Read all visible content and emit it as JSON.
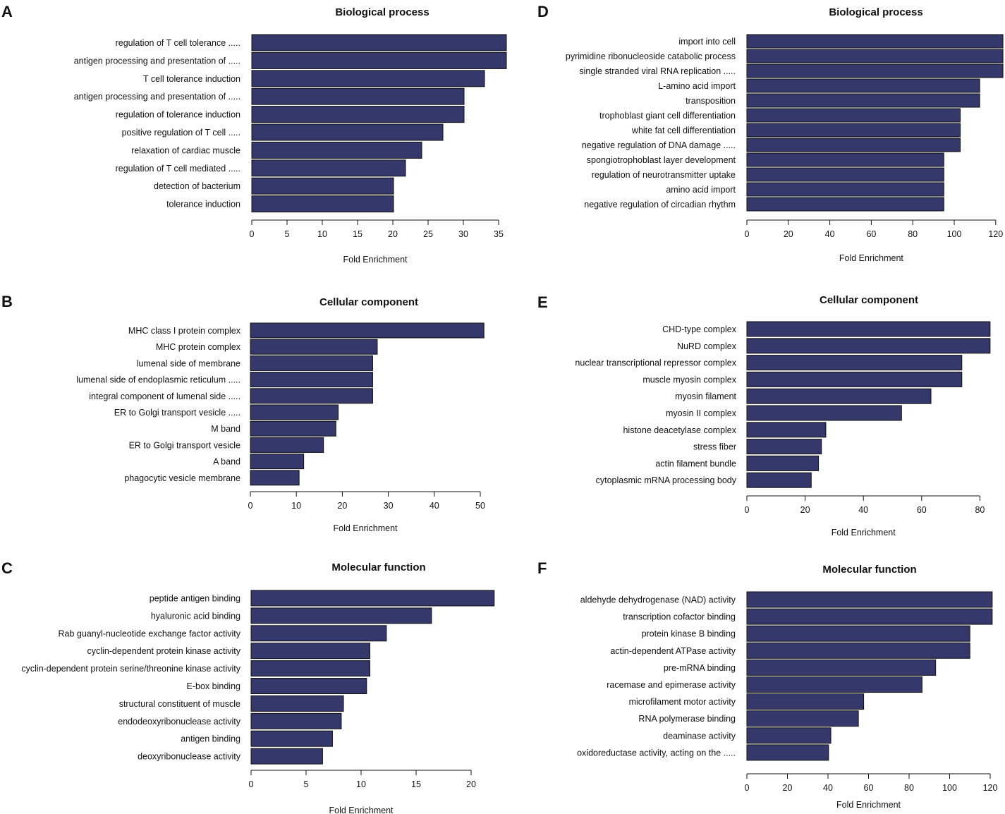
{
  "chart_data": [
    {
      "panel": "A",
      "type": "bar",
      "orientation": "horizontal",
      "title": "Biological process",
      "xlabel": "Fold Enrichment",
      "xlim": [
        0,
        35
      ],
      "xticks": [
        0,
        5,
        10,
        15,
        20,
        25,
        30,
        35
      ],
      "categories": [
        "regulation of T cell tolerance .....",
        "antigen processing and presentation of .....",
        "T cell tolerance induction",
        "antigen processing and presentation of .....",
        "regulation of tolerance induction",
        "positive regulation of T cell .....",
        "relaxation of cardiac muscle",
        "regulation of T cell mediated .....",
        "detection of bacterium",
        "tolerance induction"
      ],
      "values": [
        36.1,
        36.1,
        33.0,
        30.1,
        30.1,
        27.1,
        24.1,
        21.8,
        20.1,
        20.1
      ]
    },
    {
      "panel": "B",
      "type": "bar",
      "orientation": "horizontal",
      "title": "Cellular component",
      "xlabel": "Fold Enrichment",
      "xlim": [
        0,
        50
      ],
      "xticks": [
        0,
        10,
        20,
        30,
        40,
        50
      ],
      "categories": [
        "MHC class I protein complex",
        "MHC protein complex",
        "lumenal side of membrane",
        "lumenal side of endoplasmic reticulum .....",
        "integral component of lumenal side .....",
        "ER to Golgi transport vesicle .....",
        "M band",
        "ER to Golgi transport vesicle",
        "A band",
        "phagocytic vesicle membrane"
      ],
      "values": [
        50.8,
        27.6,
        26.6,
        26.6,
        26.6,
        19.1,
        18.6,
        15.9,
        11.6,
        10.6
      ]
    },
    {
      "panel": "C",
      "type": "bar",
      "orientation": "horizontal",
      "title": "Molecular function",
      "xlabel": "Fold Enrichment",
      "xlim": [
        0,
        20
      ],
      "xticks": [
        0,
        5,
        10,
        15,
        20
      ],
      "categories": [
        "peptide antigen binding",
        "hyaluronic acid binding",
        "Rab guanyl-nucleotide exchange factor activity",
        "cyclin-dependent protein kinase activity",
        "cyclin-dependent protein serine/threonine kinase activity",
        "E-box binding",
        "structural constituent of muscle",
        "endodeoxyribonuclease activity",
        "antigen binding",
        "deoxyribonuclease activity"
      ],
      "values": [
        22.1,
        16.4,
        12.3,
        10.8,
        10.8,
        10.5,
        8.4,
        8.2,
        7.4,
        6.5
      ]
    },
    {
      "panel": "D",
      "type": "bar",
      "orientation": "horizontal",
      "title": "Biological process",
      "xlabel": "Fold Enrichment",
      "xlim": [
        0,
        120
      ],
      "xticks": [
        0,
        20,
        40,
        60,
        80,
        100,
        120
      ],
      "categories": [
        "import into cell",
        "pyrimidine ribonucleoside catabolic process",
        "single stranded viral RNA replication .....",
        "L-amino acid import",
        "transposition",
        "trophoblast giant cell differentiation",
        "white fat cell differentiation",
        "negative regulation of DNA damage .....",
        "spongiotrophoblast layer development",
        "regulation of neurotransmitter uptake",
        "amino acid import",
        "negative regulation of circadian rhythm"
      ],
      "values": [
        123.5,
        123.5,
        123.5,
        112.3,
        112.3,
        102.9,
        102.9,
        102.9,
        95.0,
        95.0,
        95.0,
        95.0
      ]
    },
    {
      "panel": "E",
      "type": "bar",
      "orientation": "horizontal",
      "title": "Cellular component",
      "xlabel": "Fold Enrichment",
      "xlim": [
        0,
        80
      ],
      "xticks": [
        0,
        20,
        40,
        60,
        80
      ],
      "categories": [
        "CHD-type complex",
        "NuRD complex",
        "nuclear transcriptional repressor complex",
        "muscle myosin complex",
        "myosin filament",
        "myosin II complex",
        "histone deacetylase complex",
        "stress fiber",
        "actin filament bundle",
        "cytoplasmic mRNA processing body"
      ],
      "values": [
        83.5,
        83.5,
        73.8,
        73.8,
        63.2,
        53.1,
        27.1,
        25.6,
        24.6,
        22.1
      ]
    },
    {
      "panel": "F",
      "type": "bar",
      "orientation": "horizontal",
      "title": "Molecular function",
      "xlabel": "Fold Enrichment",
      "xlim": [
        0,
        120
      ],
      "xticks": [
        0,
        20,
        40,
        60,
        80,
        100,
        120
      ],
      "categories": [
        "aldehyde dehydrogenase (NAD) activity",
        "transcription cofactor binding",
        "protein kinase B binding",
        "actin-dependent ATPase activity",
        "pre-mRNA binding",
        "racemase and epimerase activity",
        "microfilament motor activity",
        "RNA polymerase binding",
        "deaminase activity",
        "oxidoreductase activity, acting on the ....."
      ],
      "values": [
        121.0,
        121.0,
        110.0,
        110.0,
        93.1,
        86.4,
        57.6,
        55.0,
        41.4,
        40.3
      ]
    }
  ]
}
